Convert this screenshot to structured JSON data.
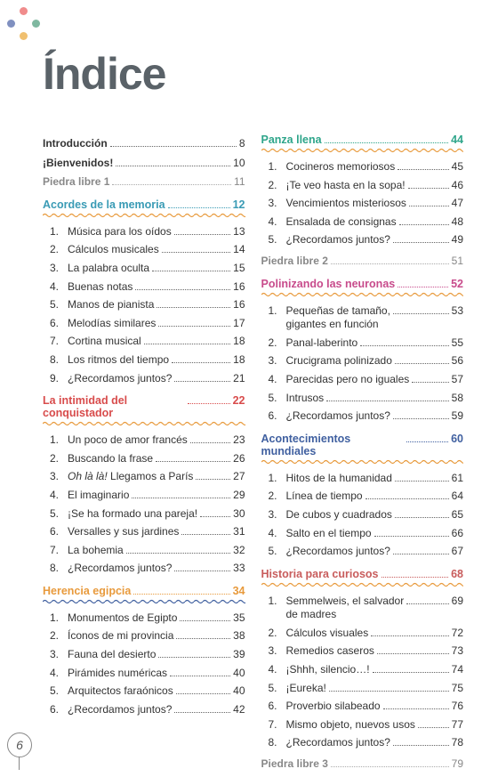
{
  "title": "Índice",
  "page_number": "6",
  "colors": {
    "title": "#5a6268",
    "dots": [
      "#f08c8c",
      "#7fb8a0",
      "#8090c0",
      "#f0c070"
    ],
    "section_blue": "#3a9bb5",
    "section_red": "#d84c4c",
    "section_orange": "#e89a3c",
    "section_teal": "#2ea58a",
    "section_mag": "#c84c8c",
    "section_navy": "#4060a0",
    "section_brick": "#c85c5c",
    "gray": "#888888",
    "text": "#333333",
    "bg": "#ffffff"
  },
  "left": {
    "top": [
      {
        "label": "Introducción",
        "page": "8",
        "cls": "intro"
      },
      {
        "label": "¡Bienvenidos!",
        "page": "10",
        "cls": ""
      },
      {
        "label": "Piedra libre 1",
        "page": "11",
        "cls": "gray"
      }
    ],
    "sections": [
      {
        "title": "Acordes de la memoria",
        "page": "12",
        "color": "blue",
        "items": [
          {
            "n": "1.",
            "label": "Música para los oídos",
            "page": "13"
          },
          {
            "n": "2.",
            "label": "Cálculos musicales",
            "page": "14"
          },
          {
            "n": "3.",
            "label": "La palabra oculta",
            "page": "15"
          },
          {
            "n": "4.",
            "label": "Buenas notas",
            "page": "16"
          },
          {
            "n": "5.",
            "label": "Manos de pianista",
            "page": "16"
          },
          {
            "n": "6.",
            "label": "Melodías similares",
            "page": "17"
          },
          {
            "n": "7.",
            "label": "Cortina musical",
            "page": "18"
          },
          {
            "n": "8.",
            "label": "Los ritmos del tiempo",
            "page": "18"
          },
          {
            "n": "9.",
            "label": "¿Recordamos juntos?",
            "page": "21"
          }
        ]
      },
      {
        "title": "La intimidad del conquistador",
        "page": "22",
        "color": "red",
        "items": [
          {
            "n": "1.",
            "label": "Un poco de amor francés",
            "page": "23"
          },
          {
            "n": "2.",
            "label": "Buscando la frase",
            "page": "26"
          },
          {
            "n": "3.",
            "label_html": "<span class='italic'>Oh là là!</span> Llegamos a París",
            "page": "27"
          },
          {
            "n": "4.",
            "label": "El imaginario",
            "page": "29"
          },
          {
            "n": "5.",
            "label": "¡Se ha formado una pareja!",
            "page": "30"
          },
          {
            "n": "6.",
            "label": "Versalles y sus jardines",
            "page": "31"
          },
          {
            "n": "7.",
            "label": "La bohemia",
            "page": "32"
          },
          {
            "n": "8.",
            "label": "¿Recordamos juntos?",
            "page": "33"
          }
        ]
      },
      {
        "title": "Herencia egipcia",
        "page": "34",
        "color": "orange",
        "items": [
          {
            "n": "1.",
            "label": "Monumentos de Egipto",
            "page": "35"
          },
          {
            "n": "2.",
            "label": "Íconos de mi provincia",
            "page": "38"
          },
          {
            "n": "3.",
            "label": "Fauna del desierto",
            "page": "39"
          },
          {
            "n": "4.",
            "label": "Pirámides numéricas",
            "page": "40"
          },
          {
            "n": "5.",
            "label": "Arquitectos faraónicos",
            "page": "40"
          },
          {
            "n": "6.",
            "label": "¿Recordamos juntos?",
            "page": "42"
          }
        ]
      }
    ]
  },
  "right": {
    "sections": [
      {
        "title": "Panza llena",
        "page": "44",
        "color": "teal",
        "items": [
          {
            "n": "1.",
            "label": "Cocineros memoriosos",
            "page": "45"
          },
          {
            "n": "2.",
            "label": "¡Te veo hasta en la sopa!",
            "page": "46"
          },
          {
            "n": "3.",
            "label": "Vencimientos misteriosos",
            "page": "47"
          },
          {
            "n": "4.",
            "label": "Ensalada de consignas",
            "page": "48"
          },
          {
            "n": "5.",
            "label": "¿Recordamos juntos?",
            "page": "49"
          }
        ],
        "after": [
          {
            "label": "Piedra libre 2",
            "page": "51",
            "cls": "gray"
          }
        ]
      },
      {
        "title": "Polinizando las neuronas",
        "page": "52",
        "color": "mag",
        "items": [
          {
            "n": "1.",
            "label_html": "Pequeñas de tamaño,<br>gigantes en función",
            "page": "53",
            "multi": true
          },
          {
            "n": "2.",
            "label": "Panal-laberinto",
            "page": "55"
          },
          {
            "n": "3.",
            "label": "Crucigrama polinizado",
            "page": "56"
          },
          {
            "n": "4.",
            "label": "Parecidas pero no iguales",
            "page": "57"
          },
          {
            "n": "5.",
            "label": "Intrusos",
            "page": "58"
          },
          {
            "n": "6.",
            "label": "¿Recordamos juntos?",
            "page": "59"
          }
        ]
      },
      {
        "title": "Acontecimientos mundiales",
        "page": "60",
        "color": "navy",
        "items": [
          {
            "n": "1.",
            "label": "Hitos de la humanidad",
            "page": "61"
          },
          {
            "n": "2.",
            "label": "Línea de tiempo",
            "page": "64"
          },
          {
            "n": "3.",
            "label": "De cubos y cuadrados",
            "page": "65"
          },
          {
            "n": "4.",
            "label": "Salto en el tiempo",
            "page": "66"
          },
          {
            "n": "5.",
            "label": "¿Recordamos juntos?",
            "page": "67"
          }
        ]
      },
      {
        "title": "Historia para curiosos",
        "page": "68",
        "color": "brick",
        "items": [
          {
            "n": "1.",
            "label_html": "Semmelweis, el salvador<br>de madres",
            "page": "69",
            "multi": true
          },
          {
            "n": "2.",
            "label": "Cálculos visuales",
            "page": "72"
          },
          {
            "n": "3.",
            "label": "Remedios caseros",
            "page": "73"
          },
          {
            "n": "4.",
            "label": "¡Shhh, silencio…!",
            "page": "74"
          },
          {
            "n": "5.",
            "label": "¡Eureka!",
            "page": "75"
          },
          {
            "n": "6.",
            "label": "Proverbio silabeado",
            "page": "76"
          },
          {
            "n": "7.",
            "label": "Mismo objeto, nuevos usos",
            "page": "77"
          },
          {
            "n": "8.",
            "label": "¿Recordamos juntos?",
            "page": "78"
          }
        ],
        "after": [
          {
            "label": "Piedra libre 3",
            "page": "79",
            "cls": "gray"
          }
        ]
      }
    ]
  }
}
